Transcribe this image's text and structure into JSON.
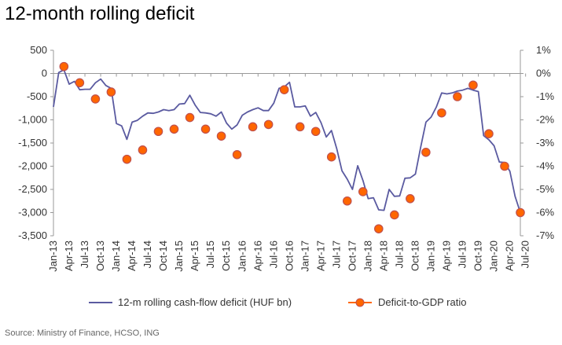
{
  "page": {
    "title": "12-month rolling deficit",
    "source": "Source: Ministry of Finance, HCSO, ING"
  },
  "chart_data": {
    "type": "line",
    "title": "12-month rolling deficit",
    "left_axis": {
      "ylim": [
        -3500,
        500
      ],
      "ticks": [
        500,
        0,
        -500,
        -1000,
        -1500,
        -2000,
        -2500,
        -3000,
        -3500
      ],
      "tick_labels": [
        "500",
        "0",
        "-500",
        "-1,000",
        "-1,500",
        "-2,000",
        "-2,500",
        "-3,000",
        "-3,500"
      ]
    },
    "right_axis": {
      "ylim": [
        -7,
        1
      ],
      "ticks": [
        1,
        0,
        -1,
        -2,
        -3,
        -4,
        -5,
        -6,
        -7
      ],
      "tick_labels": [
        "1%",
        "0%",
        "-1%",
        "-2%",
        "-3%",
        "-4%",
        "-5%",
        "-6%",
        "-7%"
      ]
    },
    "x_tick_labels": [
      "Jan-13",
      "Apr-13",
      "Jul-13",
      "Oct-13",
      "Jan-14",
      "Apr-14",
      "Jul-14",
      "Oct-14",
      "Jan-15",
      "Apr-15",
      "Jul-15",
      "Oct-15",
      "Jan-16",
      "Apr-16",
      "Jul-16",
      "Oct-16",
      "Jan-17",
      "Apr-17",
      "Jul-17",
      "Oct-17",
      "Jan-18",
      "Apr-18",
      "Jul-18",
      "Oct-18",
      "Jan-19",
      "Apr-19",
      "Jul-19",
      "Oct-19",
      "Jan-20",
      "Apr-20",
      "Jul-20"
    ],
    "x_start": "Jan-13",
    "x_end": "Jul-20",
    "grid": false,
    "legend_position": "bottom",
    "colors": {
      "line": "#5a5aa0",
      "marker": "#ff6600",
      "marker_edge": "#c0504d",
      "axis": "#999999"
    },
    "series": [
      {
        "name": "12-m rolling cash-flow deficit (HUF bn)",
        "kind": "line",
        "axis": "left",
        "values": [
          -720,
          20,
          80,
          -230,
          -170,
          -350,
          -340,
          -340,
          -200,
          -120,
          -260,
          -320,
          -1080,
          -1130,
          -1420,
          -1050,
          -1010,
          -920,
          -850,
          -860,
          -830,
          -780,
          -800,
          -780,
          -660,
          -650,
          -470,
          -680,
          -840,
          -850,
          -870,
          -920,
          -830,
          -1070,
          -1200,
          -1110,
          -900,
          -830,
          -780,
          -740,
          -800,
          -800,
          -640,
          -320,
          -290,
          -190,
          -720,
          -720,
          -700,
          -920,
          -840,
          -1060,
          -1370,
          -1230,
          -1620,
          -2100,
          -2280,
          -2500,
          -1990,
          -2310,
          -2700,
          -2680,
          -2940,
          -2950,
          -2500,
          -2650,
          -2640,
          -2260,
          -2250,
          -2170,
          -1590,
          -1050,
          -940,
          -720,
          -420,
          -440,
          -420,
          -380,
          -360,
          -320,
          -360,
          -390,
          -1340,
          -1430,
          -1560,
          -1910,
          -1920,
          -2110,
          -2650,
          -3000
        ]
      },
      {
        "name": "Deficit-to-GDP ratio",
        "kind": "markers",
        "axis": "right",
        "points": [
          {
            "month": 2,
            "value": 0.3
          },
          {
            "month": 5,
            "value": -0.4
          },
          {
            "month": 8,
            "value": -1.1
          },
          {
            "month": 11,
            "value": -0.8
          },
          {
            "month": 14,
            "value": -3.7
          },
          {
            "month": 17,
            "value": -3.3
          },
          {
            "month": 20,
            "value": -2.5
          },
          {
            "month": 23,
            "value": -2.4
          },
          {
            "month": 26,
            "value": -1.9
          },
          {
            "month": 29,
            "value": -2.4
          },
          {
            "month": 32,
            "value": -2.7
          },
          {
            "month": 35,
            "value": -3.5
          },
          {
            "month": 38,
            "value": -2.3
          },
          {
            "month": 41,
            "value": -2.2
          },
          {
            "month": 44,
            "value": -0.7
          },
          {
            "month": 47,
            "value": -2.3
          },
          {
            "month": 50,
            "value": -2.5
          },
          {
            "month": 53,
            "value": -3.6
          },
          {
            "month": 56,
            "value": -5.5
          },
          {
            "month": 59,
            "value": -5.1
          },
          {
            "month": 62,
            "value": -6.7
          },
          {
            "month": 65,
            "value": -6.1
          },
          {
            "month": 68,
            "value": -5.4
          },
          {
            "month": 71,
            "value": -3.4
          },
          {
            "month": 74,
            "value": -1.7
          },
          {
            "month": 77,
            "value": -1.0
          },
          {
            "month": 80,
            "value": -0.5
          },
          {
            "month": 83,
            "value": -2.6
          },
          {
            "month": 86,
            "value": -4.0
          },
          {
            "month": 89,
            "value": -6.0
          }
        ]
      }
    ]
  }
}
